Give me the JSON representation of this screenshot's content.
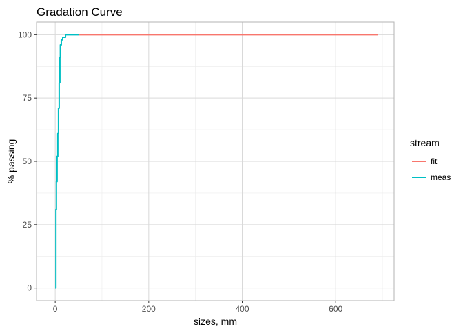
{
  "chart_data": {
    "type": "line",
    "title": "Gradation Curve",
    "xlabel": "sizes, mm",
    "ylabel": "% passing",
    "xlim": [
      -40,
      725
    ],
    "ylim": [
      -5,
      105
    ],
    "x_ticks": [
      0,
      200,
      400,
      600
    ],
    "x_minor_ticks": [
      -100,
      100,
      300,
      500,
      700
    ],
    "y_ticks": [
      0,
      25,
      50,
      75,
      100
    ],
    "y_minor_ticks": [
      12.5,
      37.5,
      62.5,
      87.5
    ],
    "grid": true,
    "legend": {
      "title": "stream",
      "position": "right"
    },
    "series": [
      {
        "name": "fit",
        "color": "#F8766D",
        "x": [
          50,
          690
        ],
        "y": [
          100,
          100
        ]
      },
      {
        "name": "meas",
        "color": "#00BFC4",
        "step": true,
        "x": [
          0,
          1.5,
          2.5,
          4,
          5.5,
          7,
          8.5,
          10,
          11,
          13,
          16,
          22,
          50
        ],
        "y": [
          0,
          31,
          42,
          52,
          61,
          71,
          81,
          91,
          96,
          98,
          99,
          100,
          100
        ]
      }
    ]
  }
}
